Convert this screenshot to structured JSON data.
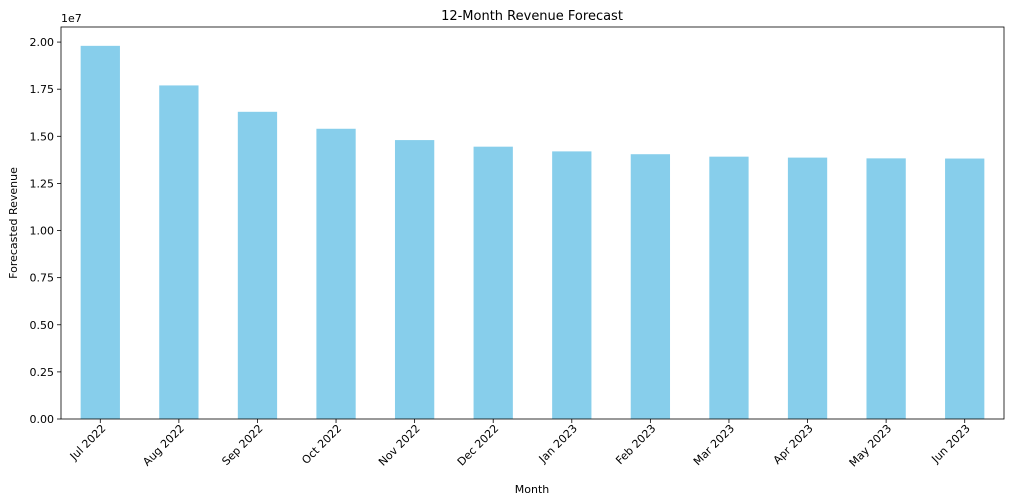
{
  "chart_data": {
    "type": "bar",
    "title": "12-Month Revenue Forecast",
    "xlabel": "Month",
    "ylabel": "Forecasted Revenue",
    "y_offset_label": "1e7",
    "categories": [
      "Jul 2022",
      "Aug 2022",
      "Sep 2022",
      "Oct 2022",
      "Nov 2022",
      "Dec 2022",
      "Jan 2023",
      "Feb 2023",
      "Mar 2023",
      "Apr 2023",
      "May 2023",
      "Jun 2023"
    ],
    "values": [
      19800000,
      17700000,
      16300000,
      15400000,
      14800000,
      14450000,
      14200000,
      14050000,
      13920000,
      13870000,
      13830000,
      13820000
    ],
    "ylim": [
      0,
      20800000
    ],
    "yticks": [
      0,
      2500000,
      5000000,
      7500000,
      10000000,
      12500000,
      15000000,
      17500000,
      20000000
    ],
    "ytick_labels": [
      "0.00",
      "0.25",
      "0.50",
      "0.75",
      "1.00",
      "1.25",
      "1.50",
      "1.75",
      "2.00"
    ],
    "bar_color": "#87ceeb",
    "grid": false,
    "legend": "none"
  }
}
